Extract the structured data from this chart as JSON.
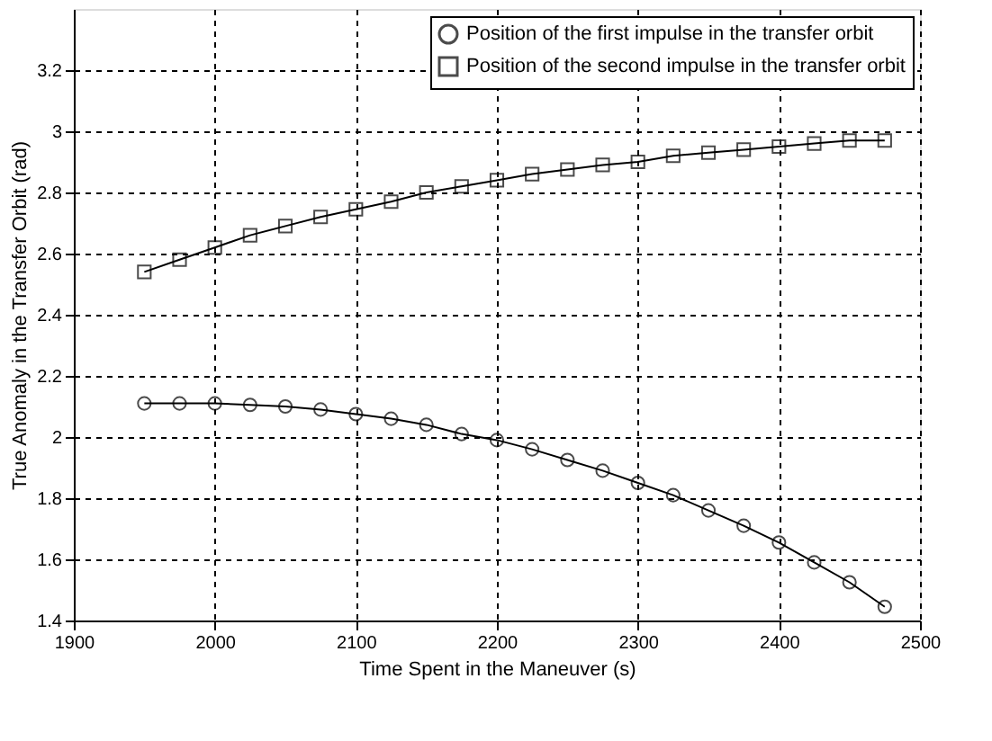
{
  "chart_data": {
    "type": "line",
    "xlabel": "Time Spent in the Maneuver (s)",
    "ylabel": "True Anomaly in the Transfer Orbit (rad)",
    "x": [
      1950,
      1975,
      2000,
      2025,
      2050,
      2075,
      2100,
      2125,
      2150,
      2175,
      2200,
      2225,
      2250,
      2275,
      2300,
      2325,
      2350,
      2375,
      2400,
      2425,
      2450,
      2475
    ],
    "series": [
      {
        "name": "Position of the first impulse in the transfer orbit",
        "color": "#000000",
        "marker": "circle",
        "values": [
          2.11,
          2.11,
          2.11,
          2.105,
          2.1,
          2.09,
          2.075,
          2.06,
          2.04,
          2.01,
          1.99,
          1.96,
          1.925,
          1.89,
          1.85,
          1.81,
          1.76,
          1.71,
          1.655,
          1.59,
          1.525,
          1.445
        ]
      },
      {
        "name": "Position of the second impulse in the transfer orbit",
        "color": "#000000",
        "marker": "square",
        "values": [
          2.54,
          2.58,
          2.62,
          2.66,
          2.69,
          2.72,
          2.745,
          2.77,
          2.8,
          2.82,
          2.84,
          2.86,
          2.875,
          2.89,
          2.9,
          2.92,
          2.93,
          2.94,
          2.95,
          2.96,
          2.97,
          2.97
        ]
      }
    ],
    "xlim": [
      1900,
      2500
    ],
    "xticks": [
      1900,
      2000,
      2100,
      2200,
      2300,
      2400,
      2500
    ],
    "ylim": [
      1.4,
      3.4
    ],
    "yticks": [
      1.4,
      1.6,
      1.8,
      2,
      2.2,
      2.4,
      2.6,
      2.8,
      3,
      3.2
    ],
    "grid": true,
    "legend": "top right",
    "line_style": "solid"
  }
}
